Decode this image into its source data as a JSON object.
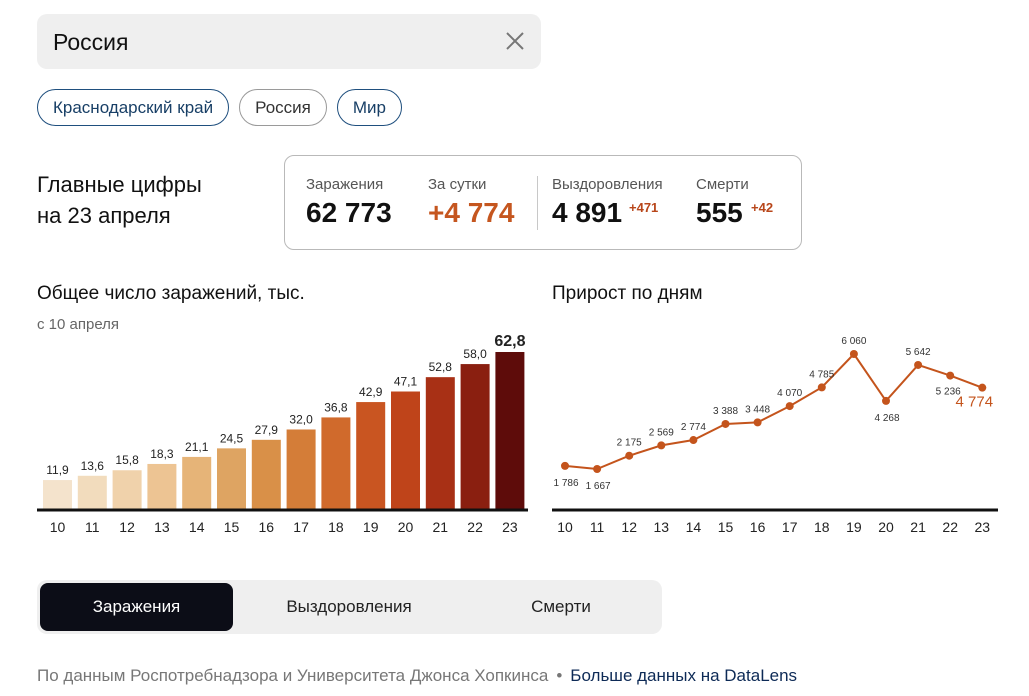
{
  "search": {
    "value": "Россия"
  },
  "chips": [
    {
      "label": "Краснодарский край",
      "active": true
    },
    {
      "label": "Россия",
      "active": false
    },
    {
      "label": "Мир",
      "active": true
    }
  ],
  "summary": {
    "title_line1": "Главные цифры",
    "title_line2": "на 23 апреля"
  },
  "stats": {
    "infections": {
      "label": "Заражения",
      "value": "62 773"
    },
    "per_day": {
      "label": "За сутки",
      "value": "+4 774"
    },
    "recovered": {
      "label": "Выздоровления",
      "value": "4 891",
      "delta": "+471"
    },
    "deaths": {
      "label": "Смерти",
      "value": "555",
      "delta": "+42"
    }
  },
  "colors": {
    "accent": "#c5561f",
    "line": "#c4541c",
    "tab_active": "#0c0d17",
    "chip_border": "#1f4f7e"
  },
  "chart_data": [
    {
      "type": "bar",
      "title": "Общее число заражений, тыс.",
      "subtitle": "с 10 апреля",
      "categories": [
        "10",
        "11",
        "12",
        "13",
        "14",
        "15",
        "16",
        "17",
        "18",
        "19",
        "20",
        "21",
        "22",
        "23"
      ],
      "values": [
        11.9,
        13.6,
        15.8,
        18.3,
        21.1,
        24.5,
        27.9,
        32.0,
        36.8,
        42.9,
        47.1,
        52.8,
        58.0,
        62.8
      ],
      "labels": [
        "11,9",
        "13,6",
        "15,8",
        "18,3",
        "21,1",
        "24,5",
        "27,9",
        "32,0",
        "36,8",
        "42,9",
        "47,1",
        "52,8",
        "58,0",
        "62,8"
      ],
      "colors": [
        "#f4e3cc",
        "#f2dcbd",
        "#f0d2ab",
        "#edc493",
        "#e6b478",
        "#dea462",
        "#d99048",
        "#d47d38",
        "#d06a2c",
        "#c95521",
        "#bf441a",
        "#a83015",
        "#8a1f10",
        "#5e0c0a"
      ],
      "ylim": [
        0,
        70
      ]
    },
    {
      "type": "line",
      "title": "Прирост по дням",
      "categories": [
        "10",
        "11",
        "12",
        "13",
        "14",
        "15",
        "16",
        "17",
        "18",
        "19",
        "20",
        "21",
        "22",
        "23"
      ],
      "values": [
        1786,
        1667,
        2175,
        2569,
        2774,
        3388,
        3448,
        4070,
        4785,
        6060,
        4268,
        5642,
        5236,
        4774
      ],
      "labels": [
        "1 786",
        "1 667",
        "2 175",
        "2 569",
        "2 774",
        "3 388",
        "3 448",
        "4 070",
        "4 785",
        "6 060",
        "4 268",
        "5 642",
        "5 236",
        "4 774"
      ],
      "ylim": [
        1000,
        6500
      ]
    }
  ],
  "tabs": [
    {
      "label": "Заражения",
      "active": true
    },
    {
      "label": "Выздоровления",
      "active": false
    },
    {
      "label": "Смерти",
      "active": false
    }
  ],
  "footer": {
    "source": "По данным Роспотребнадзора и Университета Джонса Хопкинса",
    "separator": "•",
    "link": "Больше данных на DataLens"
  }
}
